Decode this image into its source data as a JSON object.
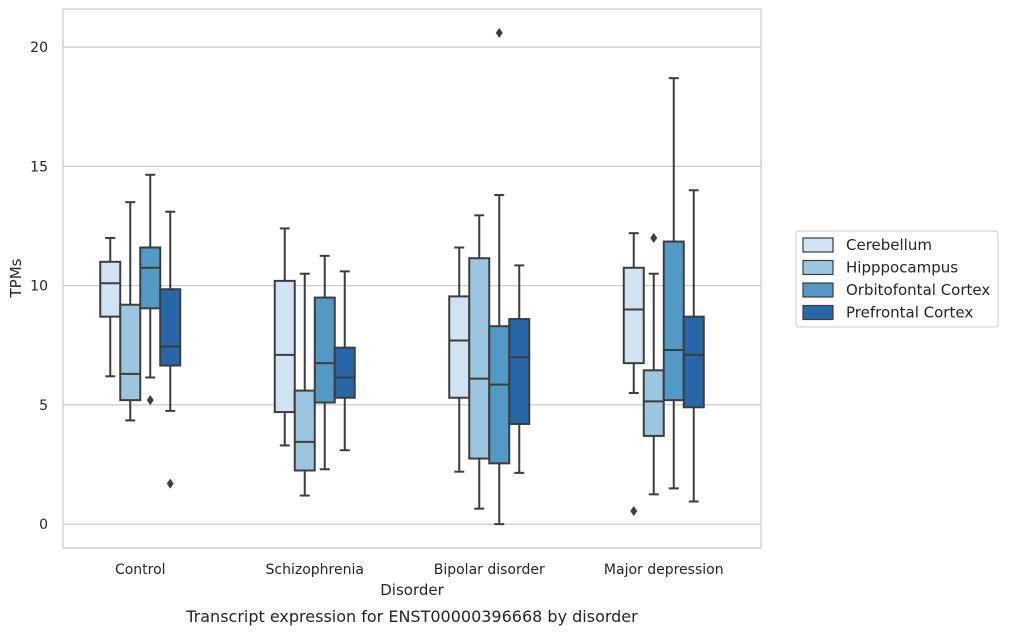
{
  "chart_data": {
    "type": "box",
    "caption": "Transcript expression for ENST00000396668 by disorder",
    "xlabel": "Disorder",
    "ylabel": "TPMs",
    "ylim": [
      -1,
      21.6
    ],
    "yticks": [
      0,
      5,
      10,
      15,
      20
    ],
    "grid": "horizontal",
    "legend_position": "right",
    "categories": [
      "Control",
      "Schizophrenia",
      "Bipolar disorder",
      "Major depression"
    ],
    "series": [
      {
        "name": "Cerebellum",
        "color": "#d1e2f2",
        "boxes": [
          {
            "whislo": 6.2,
            "q1": 8.7,
            "med": 10.1,
            "q3": 11.0,
            "whishi": 12.0,
            "fliers": []
          },
          {
            "whislo": 3.3,
            "q1": 4.7,
            "med": 7.1,
            "q3": 10.2,
            "whishi": 12.4,
            "fliers": []
          },
          {
            "whislo": 2.2,
            "q1": 5.3,
            "med": 7.7,
            "q3": 9.55,
            "whishi": 11.6,
            "fliers": []
          },
          {
            "whislo": 5.5,
            "q1": 6.75,
            "med": 9.0,
            "q3": 10.75,
            "whishi": 12.2,
            "fliers": [
              0.55
            ]
          }
        ]
      },
      {
        "name": "Hipppocampus",
        "color": "#9cc6e0",
        "boxes": [
          {
            "whislo": 4.35,
            "q1": 5.2,
            "med": 6.3,
            "q3": 9.2,
            "whishi": 13.5,
            "fliers": []
          },
          {
            "whislo": 1.2,
            "q1": 2.25,
            "med": 3.45,
            "q3": 5.6,
            "whishi": 10.5,
            "fliers": []
          },
          {
            "whislo": 0.65,
            "q1": 2.75,
            "med": 6.1,
            "q3": 11.15,
            "whishi": 12.95,
            "fliers": []
          },
          {
            "whislo": 1.25,
            "q1": 3.7,
            "med": 5.15,
            "q3": 6.45,
            "whishi": 10.5,
            "fliers": [
              12.0
            ]
          }
        ]
      },
      {
        "name": "Orbitofontal Cortex",
        "color": "#5399c6",
        "boxes": [
          {
            "whislo": 6.15,
            "q1": 9.05,
            "med": 10.75,
            "q3": 11.6,
            "whishi": 14.65,
            "fliers": [
              5.2
            ]
          },
          {
            "whislo": 2.3,
            "q1": 5.1,
            "med": 6.75,
            "q3": 9.5,
            "whishi": 11.25,
            "fliers": []
          },
          {
            "whislo": 0.0,
            "q1": 2.55,
            "med": 5.85,
            "q3": 8.3,
            "whishi": 13.8,
            "fliers": [
              20.6
            ]
          },
          {
            "whislo": 1.5,
            "q1": 5.2,
            "med": 7.3,
            "q3": 11.85,
            "whishi": 18.7,
            "fliers": []
          }
        ]
      },
      {
        "name": "Prefrontal Cortex",
        "color": "#2767a7",
        "boxes": [
          {
            "whislo": 4.75,
            "q1": 6.65,
            "med": 7.45,
            "q3": 9.85,
            "whishi": 13.1,
            "fliers": [
              1.7
            ]
          },
          {
            "whislo": 3.1,
            "q1": 5.3,
            "med": 6.15,
            "q3": 7.4,
            "whishi": 10.6,
            "fliers": []
          },
          {
            "whislo": 2.15,
            "q1": 4.2,
            "med": 7.0,
            "q3": 8.6,
            "whishi": 10.85,
            "fliers": []
          },
          {
            "whislo": 0.95,
            "q1": 4.9,
            "med": 7.1,
            "q3": 8.7,
            "whishi": 14.0,
            "fliers": []
          }
        ]
      }
    ]
  }
}
